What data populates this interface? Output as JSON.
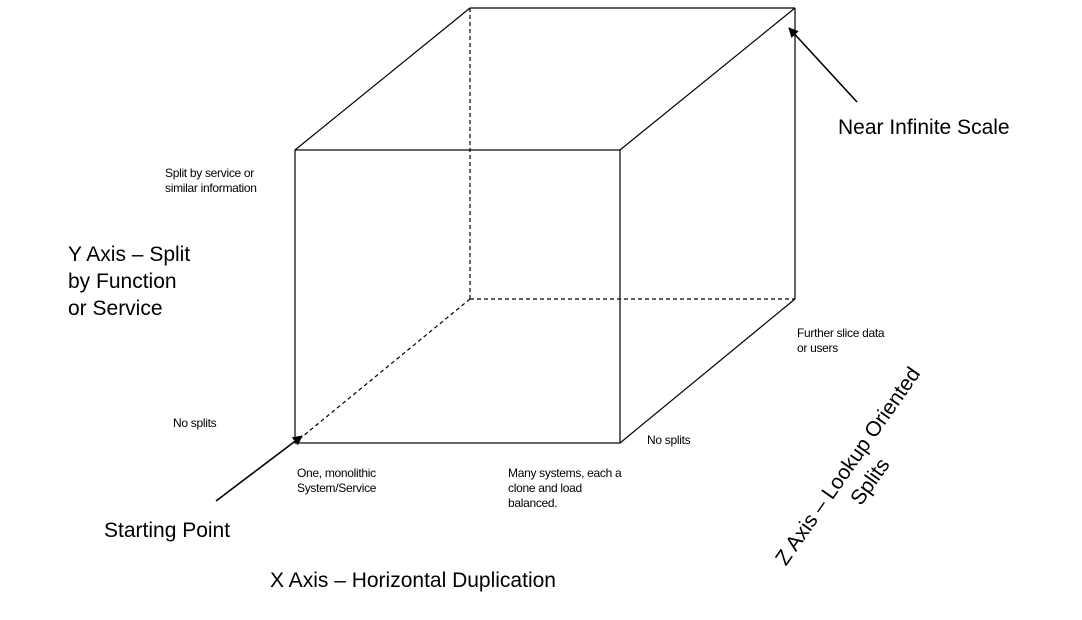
{
  "labels": {
    "near_infinite_scale": "Near Infinite Scale",
    "y_top": "Split by service or\nsimilar information",
    "y_axis": "Y Axis – Split\nby Function\nor Service",
    "y_bottom": "No splits",
    "z_far": "Further slice data\nor users",
    "z_near": "No splits",
    "x_left": "One, monolithic\nSystem/Service",
    "x_right": "Many systems, each a\nclone and load\nbalanced.",
    "starting_point": "Starting Point",
    "x_axis": "X Axis – Horizontal Duplication",
    "z_axis": "Z Axis – Lookup Oriented\nSplits"
  },
  "colors": {
    "line": "#000000",
    "background": "#ffffff"
  }
}
